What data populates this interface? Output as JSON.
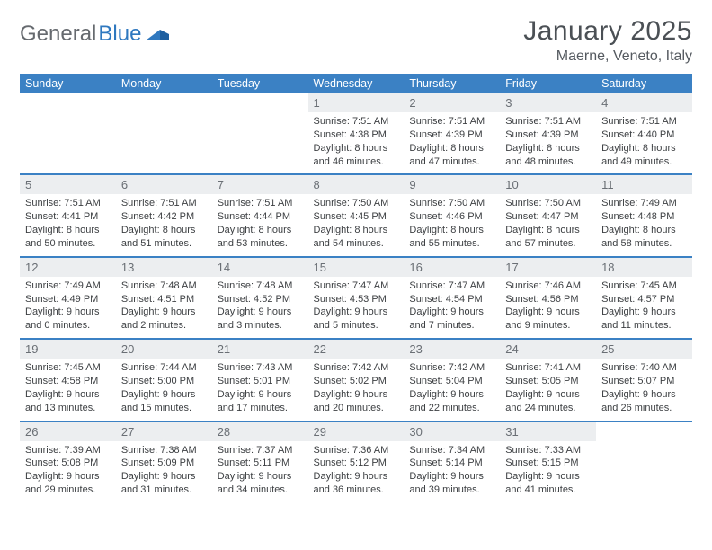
{
  "brand": {
    "part1": "General",
    "part2": "Blue"
  },
  "title": "January 2025",
  "location": "Maerne, Veneto, Italy",
  "colors": {
    "header_bg": "#3b81c4",
    "daynum_bg": "#eceef0",
    "text": "#3c3f42",
    "brand_gray": "#666a6f",
    "brand_blue": "#2f78bf"
  },
  "weekdays": [
    "Sunday",
    "Monday",
    "Tuesday",
    "Wednesday",
    "Thursday",
    "Friday",
    "Saturday"
  ],
  "weeks": [
    [
      null,
      null,
      null,
      {
        "n": "1",
        "sr": "7:51 AM",
        "ss": "4:38 PM",
        "dh": "8",
        "dm": "46"
      },
      {
        "n": "2",
        "sr": "7:51 AM",
        "ss": "4:39 PM",
        "dh": "8",
        "dm": "47"
      },
      {
        "n": "3",
        "sr": "7:51 AM",
        "ss": "4:39 PM",
        "dh": "8",
        "dm": "48"
      },
      {
        "n": "4",
        "sr": "7:51 AM",
        "ss": "4:40 PM",
        "dh": "8",
        "dm": "49"
      }
    ],
    [
      {
        "n": "5",
        "sr": "7:51 AM",
        "ss": "4:41 PM",
        "dh": "8",
        "dm": "50"
      },
      {
        "n": "6",
        "sr": "7:51 AM",
        "ss": "4:42 PM",
        "dh": "8",
        "dm": "51"
      },
      {
        "n": "7",
        "sr": "7:51 AM",
        "ss": "4:44 PM",
        "dh": "8",
        "dm": "53"
      },
      {
        "n": "8",
        "sr": "7:50 AM",
        "ss": "4:45 PM",
        "dh": "8",
        "dm": "54"
      },
      {
        "n": "9",
        "sr": "7:50 AM",
        "ss": "4:46 PM",
        "dh": "8",
        "dm": "55"
      },
      {
        "n": "10",
        "sr": "7:50 AM",
        "ss": "4:47 PM",
        "dh": "8",
        "dm": "57"
      },
      {
        "n": "11",
        "sr": "7:49 AM",
        "ss": "4:48 PM",
        "dh": "8",
        "dm": "58"
      }
    ],
    [
      {
        "n": "12",
        "sr": "7:49 AM",
        "ss": "4:49 PM",
        "dh": "9",
        "dm": "0"
      },
      {
        "n": "13",
        "sr": "7:48 AM",
        "ss": "4:51 PM",
        "dh": "9",
        "dm": "2"
      },
      {
        "n": "14",
        "sr": "7:48 AM",
        "ss": "4:52 PM",
        "dh": "9",
        "dm": "3"
      },
      {
        "n": "15",
        "sr": "7:47 AM",
        "ss": "4:53 PM",
        "dh": "9",
        "dm": "5"
      },
      {
        "n": "16",
        "sr": "7:47 AM",
        "ss": "4:54 PM",
        "dh": "9",
        "dm": "7"
      },
      {
        "n": "17",
        "sr": "7:46 AM",
        "ss": "4:56 PM",
        "dh": "9",
        "dm": "9"
      },
      {
        "n": "18",
        "sr": "7:45 AM",
        "ss": "4:57 PM",
        "dh": "9",
        "dm": "11"
      }
    ],
    [
      {
        "n": "19",
        "sr": "7:45 AM",
        "ss": "4:58 PM",
        "dh": "9",
        "dm": "13"
      },
      {
        "n": "20",
        "sr": "7:44 AM",
        "ss": "5:00 PM",
        "dh": "9",
        "dm": "15"
      },
      {
        "n": "21",
        "sr": "7:43 AM",
        "ss": "5:01 PM",
        "dh": "9",
        "dm": "17"
      },
      {
        "n": "22",
        "sr": "7:42 AM",
        "ss": "5:02 PM",
        "dh": "9",
        "dm": "20"
      },
      {
        "n": "23",
        "sr": "7:42 AM",
        "ss": "5:04 PM",
        "dh": "9",
        "dm": "22"
      },
      {
        "n": "24",
        "sr": "7:41 AM",
        "ss": "5:05 PM",
        "dh": "9",
        "dm": "24"
      },
      {
        "n": "25",
        "sr": "7:40 AM",
        "ss": "5:07 PM",
        "dh": "9",
        "dm": "26"
      }
    ],
    [
      {
        "n": "26",
        "sr": "7:39 AM",
        "ss": "5:08 PM",
        "dh": "9",
        "dm": "29"
      },
      {
        "n": "27",
        "sr": "7:38 AM",
        "ss": "5:09 PM",
        "dh": "9",
        "dm": "31"
      },
      {
        "n": "28",
        "sr": "7:37 AM",
        "ss": "5:11 PM",
        "dh": "9",
        "dm": "34"
      },
      {
        "n": "29",
        "sr": "7:36 AM",
        "ss": "5:12 PM",
        "dh": "9",
        "dm": "36"
      },
      {
        "n": "30",
        "sr": "7:34 AM",
        "ss": "5:14 PM",
        "dh": "9",
        "dm": "39"
      },
      {
        "n": "31",
        "sr": "7:33 AM",
        "ss": "5:15 PM",
        "dh": "9",
        "dm": "41"
      },
      null
    ]
  ],
  "labels": {
    "sunrise": "Sunrise:",
    "sunset": "Sunset:",
    "daylight": "Daylight:",
    "hours": "hours",
    "and": "and",
    "minutes": "minutes."
  }
}
